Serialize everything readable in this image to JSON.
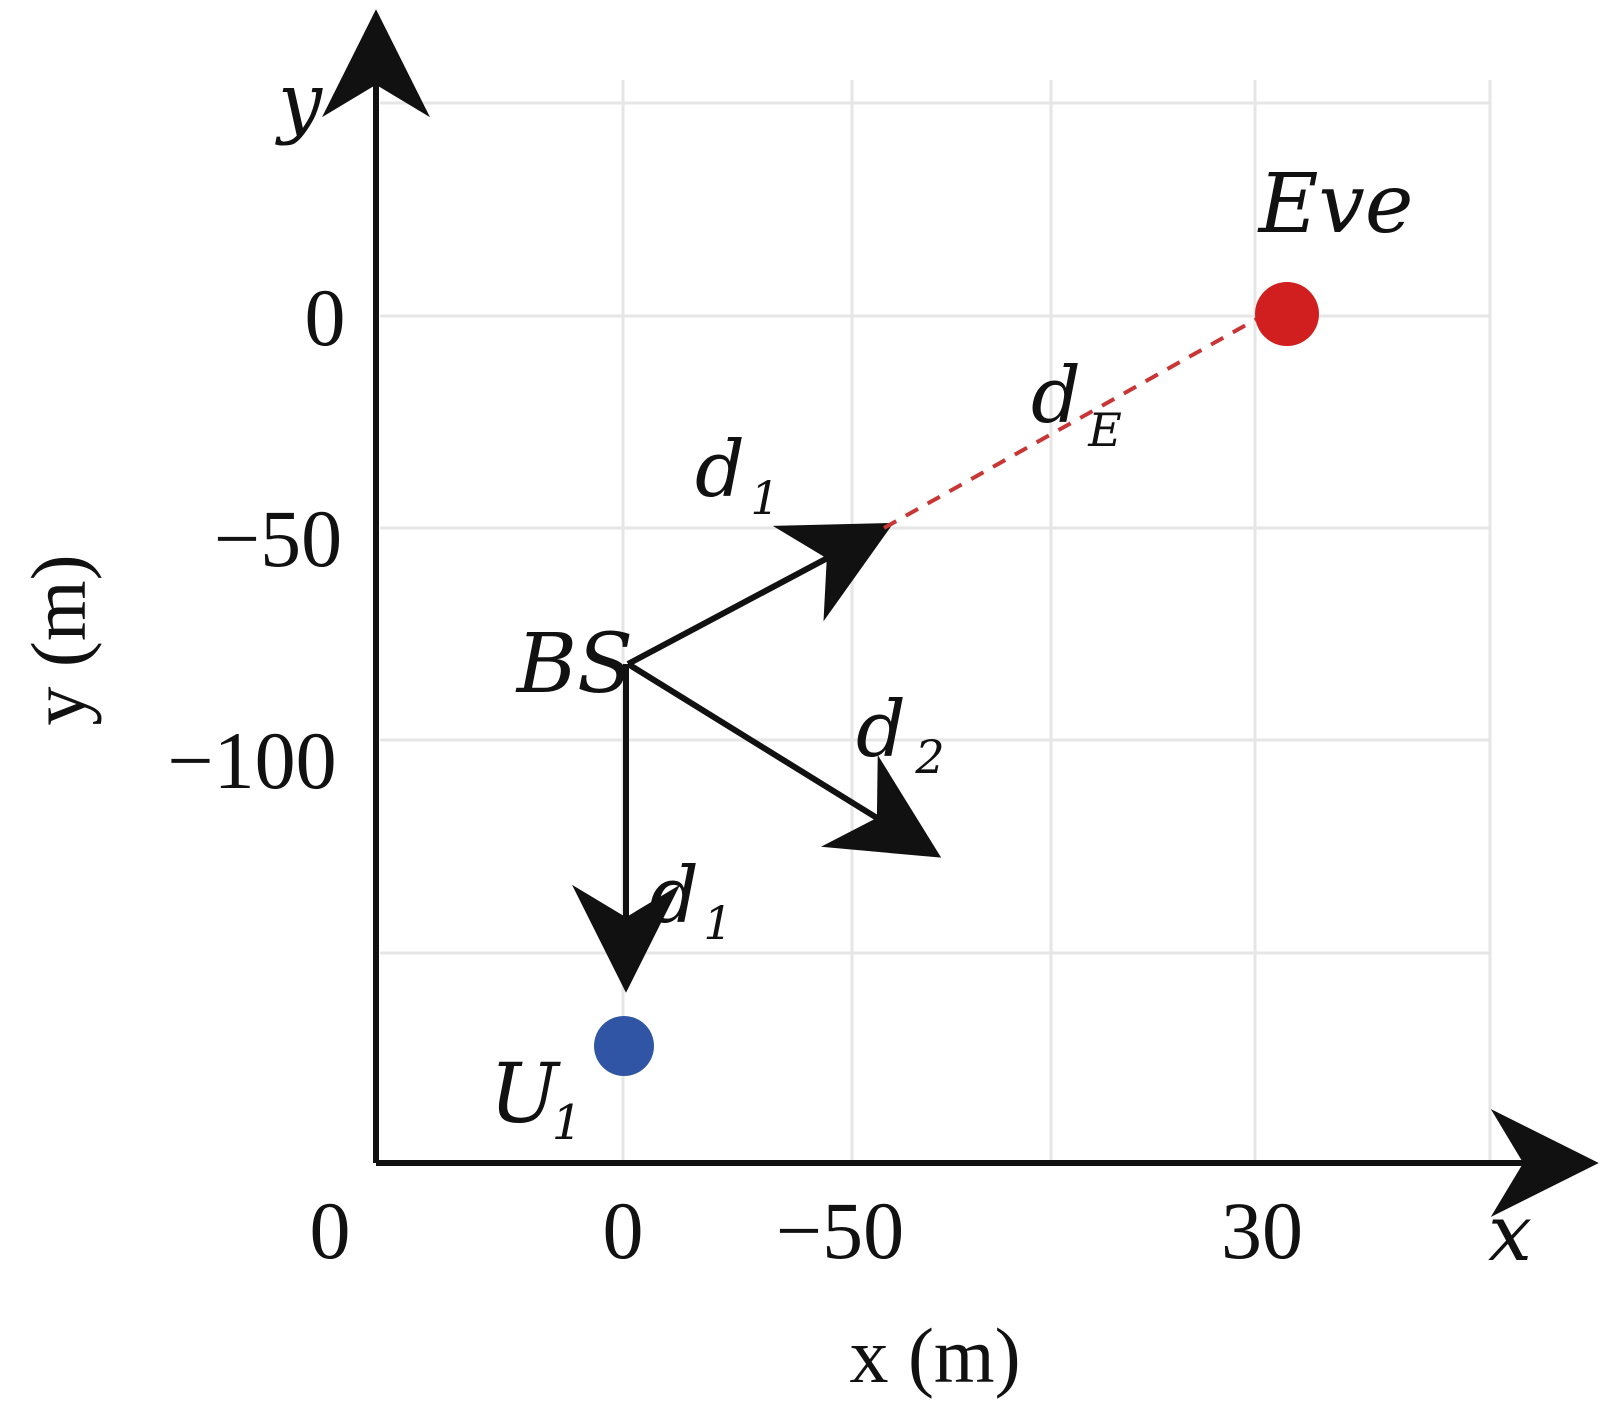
{
  "colors": {
    "axis": "#111111",
    "grid": "#e6e6e6",
    "eve": "#d11f1f",
    "user": "#2f55a4",
    "link": "#111111",
    "eve_link": "#c83636"
  },
  "axes": {
    "x_arrow_label": "x",
    "y_arrow_label": "y",
    "x_title": "x (m)",
    "y_title": "y (m)"
  },
  "ticks": {
    "x": [
      "0",
      "0",
      "−50",
      "30"
    ],
    "y": [
      "0",
      "−50",
      "−100"
    ]
  },
  "nodes": {
    "bs": "BS",
    "eve": "Eve",
    "user": {
      "main": "U",
      "sub": "1"
    }
  },
  "links": {
    "bs_to_eve_top": {
      "main": "d",
      "sub": "1"
    },
    "bs_to_eve_dashed": {
      "main": "d",
      "sub": "E"
    },
    "bs_to_lower_right": {
      "main": "d",
      "sub": "2"
    },
    "bs_to_user": {
      "main": "d",
      "sub": "1"
    }
  }
}
